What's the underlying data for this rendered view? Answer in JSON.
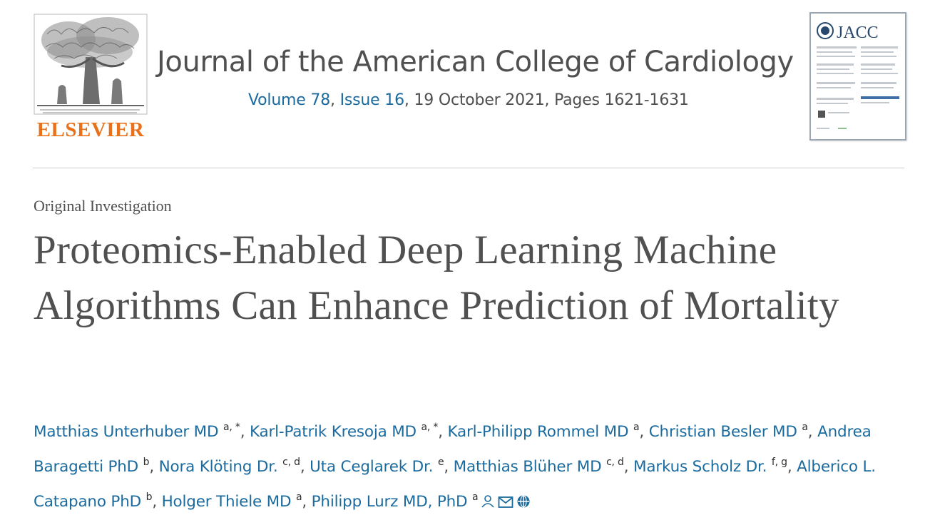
{
  "publisher": {
    "name": "ELSEVIER"
  },
  "journal": {
    "title": "Journal of the American College of Cardiology",
    "volume": "Volume 78",
    "sep1": ", ",
    "issue": "Issue 16",
    "date_pages": ", 19 October 2021, Pages 1621-1631"
  },
  "cover": {
    "journal_abbrev": "JACC"
  },
  "article": {
    "type": "Original Investigation",
    "title": "Proteomics-Enabled Deep Learning Machine Algorithms Can Enhance Prediction of Mortality"
  },
  "authors": [
    {
      "name": "Matthias Unterhuber MD",
      "aff": "a, *"
    },
    {
      "name": "Karl-Patrik Kresoja MD",
      "aff": "a, *"
    },
    {
      "name": "Karl-Philipp Rommel MD",
      "aff": "a"
    },
    {
      "name": "Christian Besler MD",
      "aff": "a"
    },
    {
      "name": "Andrea Baragetti PhD",
      "aff": "b"
    },
    {
      "name": "Nora Klöting Dr.",
      "aff": "c, d"
    },
    {
      "name": "Uta Ceglarek Dr.",
      "aff": "e"
    },
    {
      "name": "Matthias Blüher MD",
      "aff": "c, d"
    },
    {
      "name": "Markus Scholz Dr.",
      "aff": "f, g"
    },
    {
      "name": "Alberico L. Catapano PhD",
      "aff": "b"
    },
    {
      "name": "Holger Thiele MD",
      "aff": "a"
    },
    {
      "name": "Philipp Lurz MD, PhD",
      "aff": "a"
    }
  ],
  "icons": [
    "person-icon",
    "email-icon",
    "orcid-icon"
  ],
  "colors": {
    "publisher_orange": "#e9711c",
    "link_blue": "#1c6b9e",
    "text_gray": "#505050"
  }
}
